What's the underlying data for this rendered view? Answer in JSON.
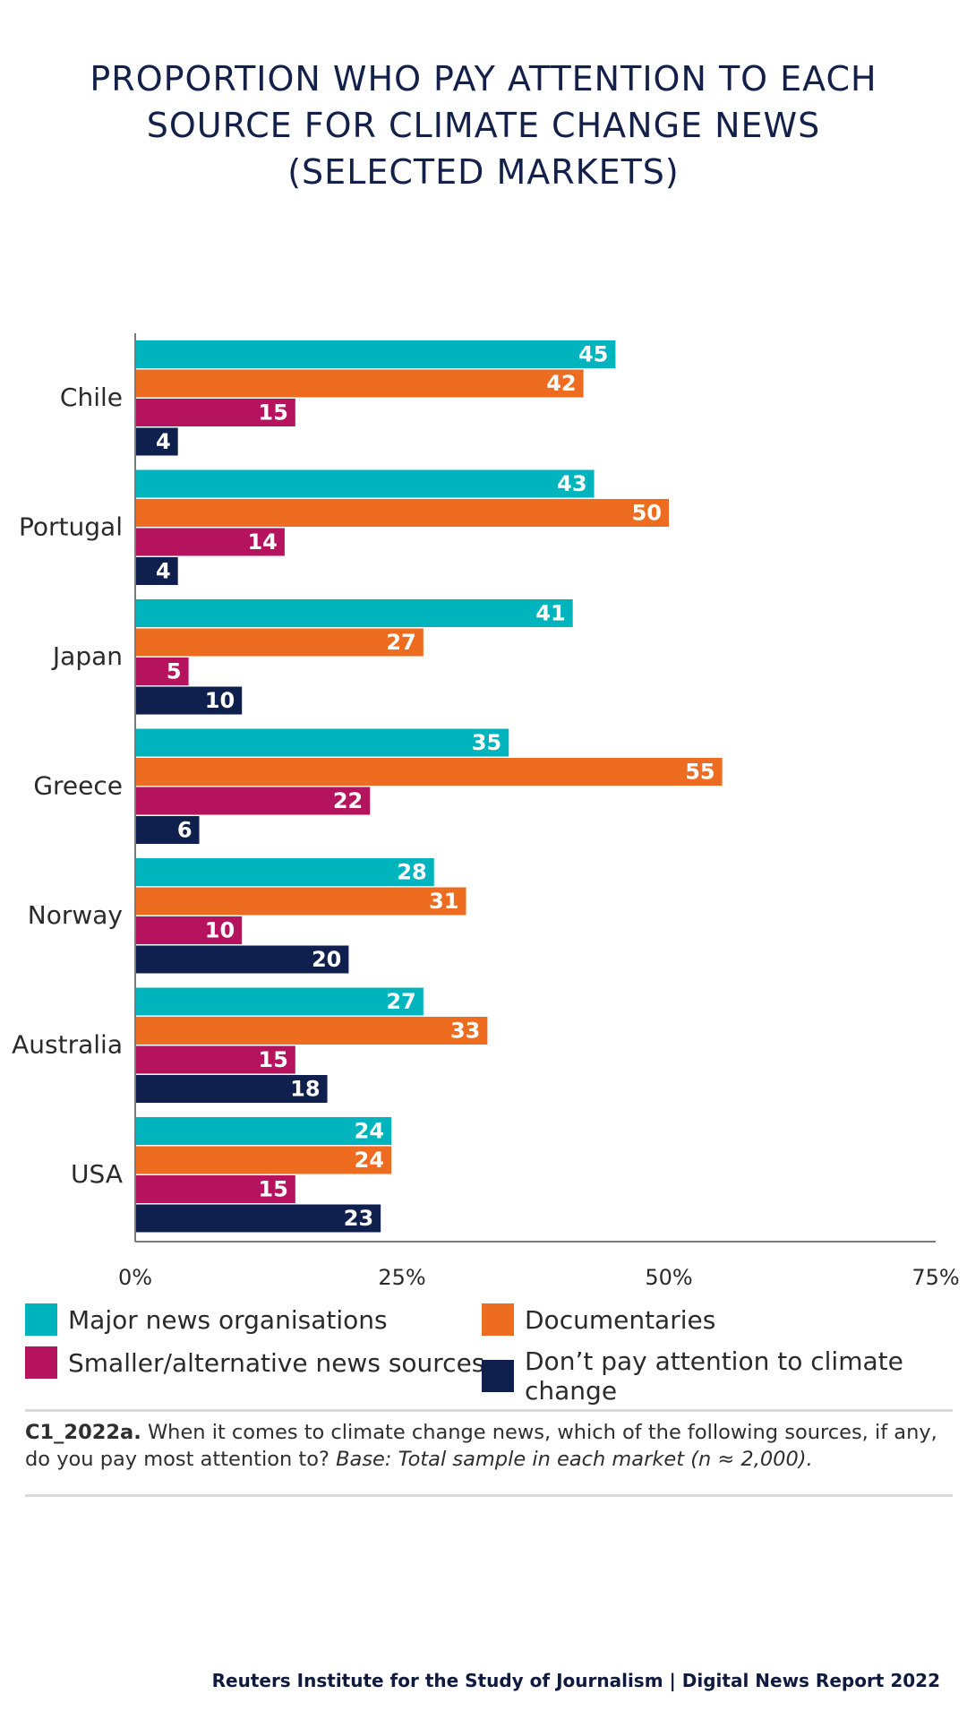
{
  "header": {
    "title_line1": "PROPORTION WHO PAY ATTENTION TO EACH",
    "title_line2": "SOURCE FOR CLIMATE CHANGE NEWS",
    "title_line3": "(SELECTED MARKETS)"
  },
  "chart_data": {
    "type": "bar",
    "orientation": "horizontal",
    "title": "PROPORTION WHO PAY ATTENTION TO EACH SOURCE FOR CLIMATE CHANGE NEWS (SELECTED MARKETS)",
    "categories": [
      "Chile",
      "Portugal",
      "Japan",
      "Greece",
      "Norway",
      "Australia",
      "USA"
    ],
    "series": [
      {
        "name": "Major news organisations",
        "color": "#00b4be",
        "values": [
          45,
          43,
          41,
          35,
          28,
          27,
          24
        ]
      },
      {
        "name": "Documentaries",
        "color": "#ee6c1f",
        "values": [
          42,
          50,
          27,
          55,
          31,
          33,
          24
        ]
      },
      {
        "name": "Smaller/alternative news sources",
        "color": "#b5135e",
        "values": [
          15,
          14,
          5,
          22,
          10,
          15,
          15
        ]
      },
      {
        "name": "Don’t pay attention to climate change",
        "color": "#0f1f4e",
        "values": [
          4,
          4,
          10,
          6,
          20,
          18,
          23
        ]
      }
    ],
    "xlim": [
      0,
      75
    ],
    "xticks": [
      0,
      25,
      50,
      75
    ],
    "xtick_labels": [
      "0%",
      "25%",
      "50%",
      "75%"
    ],
    "grid": false,
    "data_labels": true,
    "legend_position": "bottom"
  },
  "note": {
    "code": "C1_2022a.",
    "question": "When it comes to climate change news, which of the following sources, if any, do you pay most attention to?",
    "base": "Base: Total sample in each market (n ≈ 2,000)."
  },
  "footer": {
    "text": "Reuters Institute for the Study of Journalism | Digital News Report 2022"
  }
}
